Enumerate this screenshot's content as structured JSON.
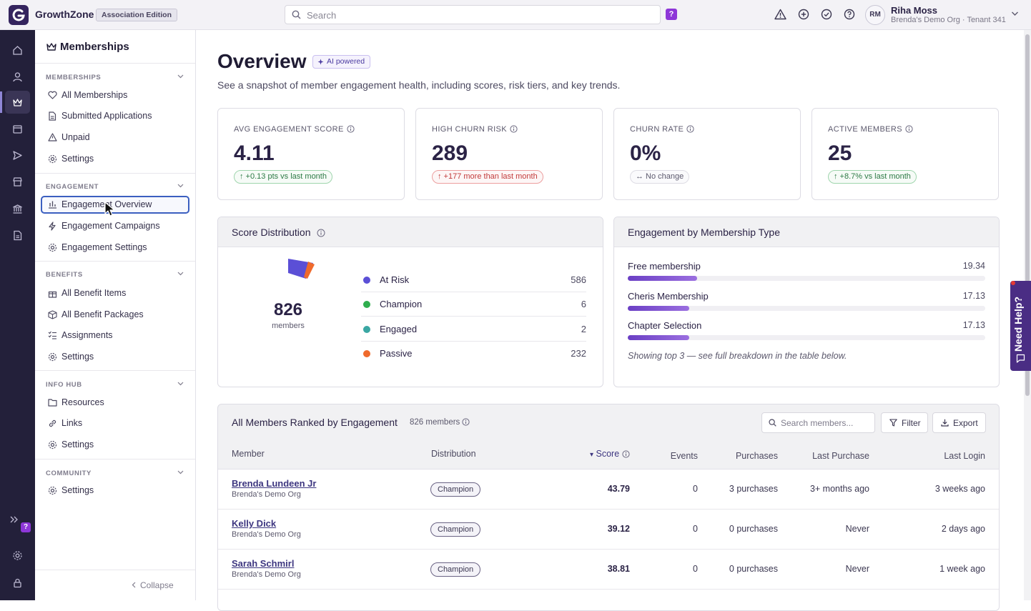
{
  "app": {
    "brand": "GrowthZone",
    "edition": "Association Edition",
    "search_placeholder": "Search",
    "ai_badge": "?",
    "user": {
      "initials": "RM",
      "name": "Riha Moss",
      "org": "Brenda's Demo Org · Tenant 341"
    }
  },
  "sidebar": {
    "title": "Memberships",
    "sections": [
      {
        "label": "MEMBERSHIPS",
        "items": [
          "All Memberships",
          "Submitted Applications",
          "Unpaid",
          "Settings"
        ]
      },
      {
        "label": "ENGAGEMENT",
        "items": [
          "Engagement Overview",
          "Engagement Campaigns",
          "Engagement Settings"
        ]
      },
      {
        "label": "BENEFITS",
        "items": [
          "All Benefit Items",
          "All Benefit Packages",
          "Assignments",
          "Settings"
        ]
      },
      {
        "label": "INFO HUB",
        "items": [
          "Resources",
          "Links",
          "Settings"
        ]
      },
      {
        "label": "COMMUNITY",
        "items": [
          "Settings"
        ]
      }
    ],
    "collapse_label": "Collapse",
    "rail_help": "?"
  },
  "page": {
    "title": "Overview",
    "ai_pill": "AI powered",
    "subtitle": "See a snapshot of member engagement health, including scores, risk tiers, and key trends."
  },
  "kpis": [
    {
      "label": "AVG ENGAGEMENT SCORE",
      "value": "4.11",
      "change": "↑ +0.13 pts vs last month",
      "tone": "up"
    },
    {
      "label": "HIGH CHURN RISK",
      "value": "289",
      "change": "↑ +177 more than last month",
      "tone": "bad"
    },
    {
      "label": "CHURN RATE",
      "value": "0%",
      "change": "↔ No change",
      "tone": "flat"
    },
    {
      "label": "ACTIVE MEMBERS",
      "value": "25",
      "change": "↑ +8.7% vs last month",
      "tone": "up"
    }
  ],
  "score_distribution": {
    "title": "Score Distribution",
    "total": "826",
    "total_label": "members",
    "rows": [
      {
        "name": "At Risk",
        "value": "586",
        "color": "#5b4fd6"
      },
      {
        "name": "Champion",
        "value": "6",
        "color": "#2fae4e"
      },
      {
        "name": "Engaged",
        "value": "2",
        "color": "#3aa7a3"
      },
      {
        "name": "Passive",
        "value": "232",
        "color": "#ef6a2c"
      }
    ]
  },
  "engagement_by_type": {
    "title": "Engagement by Membership Type",
    "max_scale": 100,
    "rows": [
      {
        "name": "Free membership",
        "value": 19.34,
        "label": "19.34"
      },
      {
        "name": "Cheris Membership",
        "value": 17.13,
        "label": "17.13"
      },
      {
        "name": "Chapter Selection",
        "value": 17.13,
        "label": "17.13"
      }
    ],
    "note": "Showing top 3 — see full breakdown in the table below."
  },
  "members_table": {
    "title": "All Members Ranked by Engagement",
    "count": "826 members",
    "search_placeholder": "Search members...",
    "filter_label": "Filter",
    "export_label": "Export",
    "columns": {
      "member": "Member",
      "distribution": "Distribution",
      "score": "Score",
      "events": "Events",
      "purchases": "Purchases",
      "last_purchase": "Last Purchase",
      "last_login": "Last Login"
    },
    "sort_indicator": "▾",
    "rows": [
      {
        "name": "Brenda Lundeen Jr",
        "org": "Brenda's Demo Org",
        "tier": "Champion",
        "score": "43.79",
        "events": "0",
        "purchases": "3 purchases",
        "last_purchase": "3+ months ago",
        "last_login": "3 weeks ago"
      },
      {
        "name": "Kelly Dick",
        "org": "Brenda's Demo Org",
        "tier": "Champion",
        "score": "39.12",
        "events": "0",
        "purchases": "0 purchases",
        "last_purchase": "Never",
        "last_login": "2 days ago"
      },
      {
        "name": "Sarah Schmirl",
        "org": "Brenda's Demo Org",
        "tier": "Champion",
        "score": "38.81",
        "events": "0",
        "purchases": "0 purchases",
        "last_purchase": "Never",
        "last_login": "1 week ago"
      }
    ]
  },
  "need_help": "Need Help?"
}
